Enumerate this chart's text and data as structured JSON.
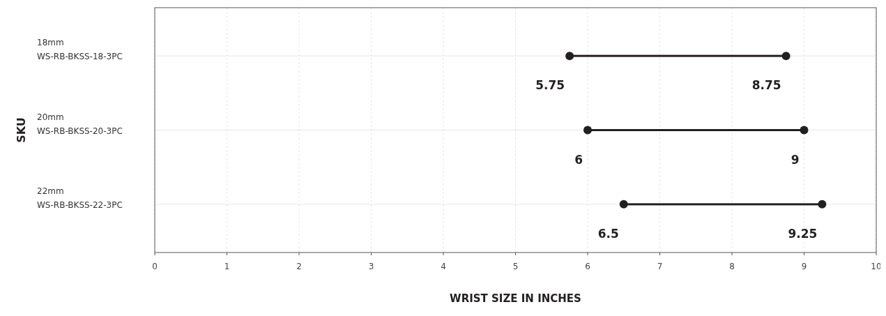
{
  "chart_data": {
    "type": "bar",
    "orientation": "horizontal",
    "xlabel": "WRIST SIZE IN INCHES",
    "ylabel": "SKU",
    "categories": [
      "18mm\nWS-RB-BKSS-18-3PC",
      "20mm\nWS-RB-BKSS-20-3PC",
      "22mm\nWS-RB-BKSS-22-3PC"
    ],
    "series": [
      {
        "color": "#231f20",
        "base": [
          5.75,
          6,
          6.5
        ],
        "values": [
          3,
          3,
          2.75
        ]
      },
      {
        "type": "scatter",
        "color": "#231f20",
        "values": [
          5.75,
          6,
          6.5
        ],
        "value_labels": [
          "5.75",
          "6",
          "6.5"
        ]
      },
      {
        "type": "scatter",
        "color": "#231f20",
        "values": [
          8.75,
          9,
          9.25
        ],
        "value_labels": [
          "8.75",
          "9",
          "9.25"
        ]
      }
    ],
    "marker": "circle",
    "grid": true,
    "xlim": [
      0,
      10
    ],
    "xticks": [
      0,
      1,
      2,
      3,
      4,
      5,
      6,
      7,
      8,
      9,
      10
    ]
  }
}
